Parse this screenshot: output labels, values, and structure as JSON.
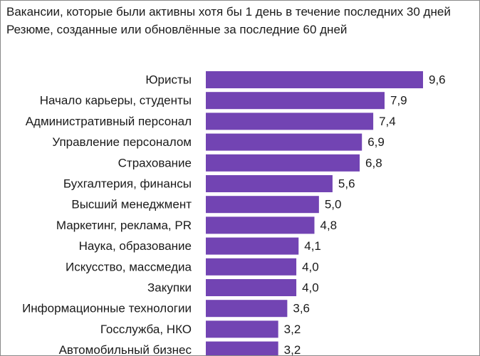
{
  "chart_data": {
    "type": "bar",
    "orientation": "horizontal",
    "title_lines": [
      "Вакансии, которые были активны хотя бы 1 день в течение последних 30 дней",
      "Резюме, созданные или обновлённые за последние 60 дней"
    ],
    "categories": [
      "Юристы",
      "Начало карьеры, студенты",
      "Административный персонал",
      "Управление персоналом",
      "Страхование",
      "Бухгалтерия, финансы",
      "Высший менеджмент",
      "Маркетинг, реклама, PR",
      "Наука, образование",
      "Искусство, массмедиа",
      "Закупки",
      "Информационные технологии",
      "Госслужба, НКО",
      "Автомобильный бизнес"
    ],
    "values": [
      9.6,
      7.9,
      7.4,
      6.9,
      6.8,
      5.6,
      5.0,
      4.8,
      4.1,
      4.0,
      4.0,
      3.6,
      3.2,
      3.2
    ],
    "value_labels": [
      "9,6",
      "7,9",
      "7,4",
      "6,9",
      "6,8",
      "5,6",
      "5,0",
      "4,8",
      "4,1",
      "4,0",
      "4,0",
      "3,6",
      "3,2",
      "3,2"
    ],
    "xlim": [
      0,
      9.6
    ],
    "grid": false,
    "bar_color": "#7244b3"
  }
}
